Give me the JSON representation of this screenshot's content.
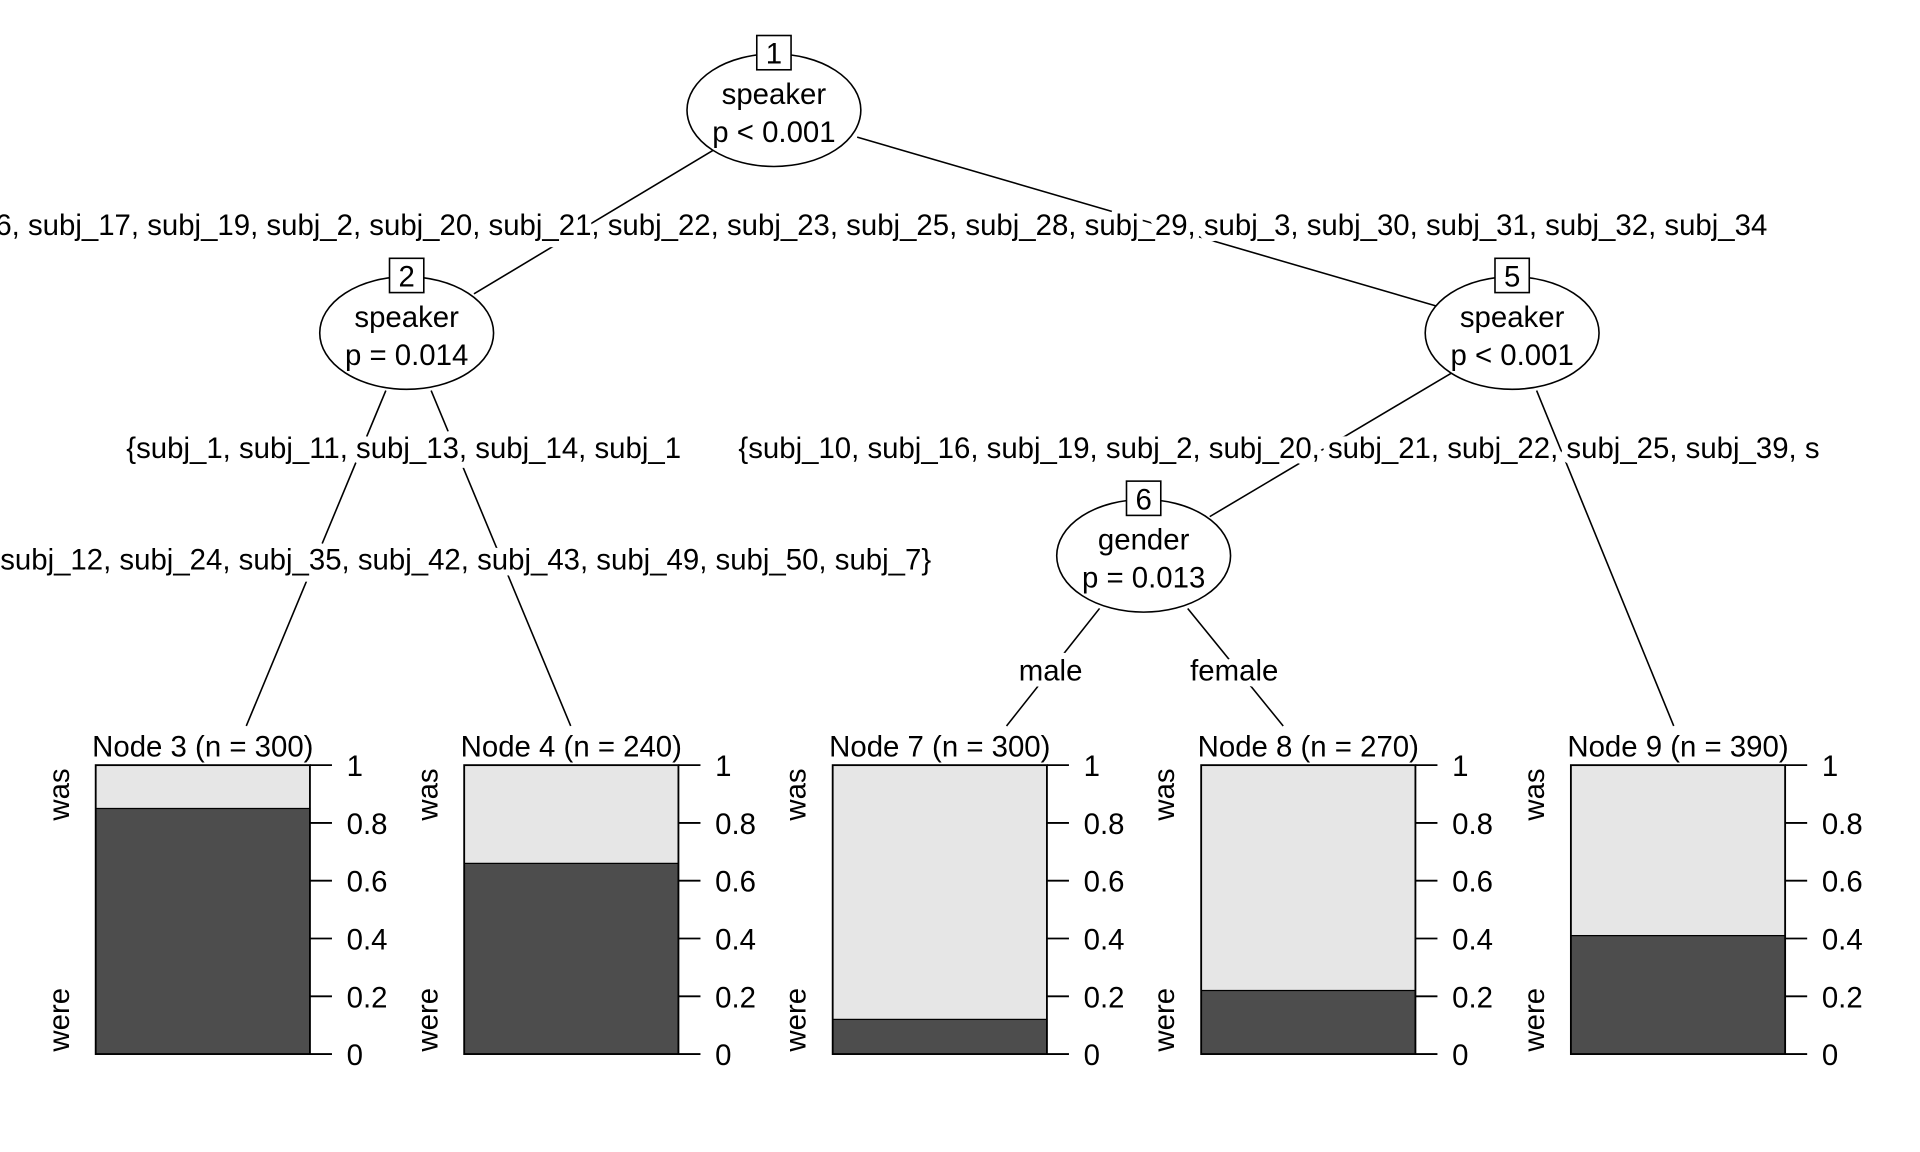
{
  "colors": {
    "were": "#4d4d4d",
    "was": "#e6e6e6",
    "line": "#000000"
  },
  "inner_nodes": [
    {
      "id": "1",
      "variable": "speaker",
      "pvalue": "p < 0.001"
    },
    {
      "id": "2",
      "variable": "speaker",
      "pvalue": "p = 0.014"
    },
    {
      "id": "5",
      "variable": "speaker",
      "pvalue": "p < 0.001"
    },
    {
      "id": "6",
      "variable": "gender",
      "pvalue": "p = 0.013"
    }
  ],
  "edge_labels": {
    "node1_split": "6, subj_17, subj_19, subj_2, subj_20, subj_21, subj_22, subj_23, subj_25, subj_28, subj_29, subj_3, subj_30, subj_31, subj_32, subj_34",
    "node2_left": "{subj_1, subj_11, subj_13, subj_14, subj_1",
    "node5_left": "{subj_10, subj_16, subj_19, subj_2, subj_20, subj_21, subj_22, subj_25, subj_39, s",
    "node2_right": "subj_12, subj_24, subj_35, subj_42, subj_43, subj_49, subj_50, subj_7}",
    "node6_left": "male",
    "node6_right": "female"
  },
  "chart_data": {
    "type": "bar",
    "title": "",
    "categories": [
      "was",
      "were"
    ],
    "ylim": [
      0,
      1
    ],
    "yticks": [
      "0",
      "0.2",
      "0.4",
      "0.6",
      "0.8",
      "1"
    ],
    "leaves": [
      {
        "title": "Node 3 (n = 300)",
        "were": 0.85,
        "was": 0.15
      },
      {
        "title": "Node 4 (n = 240)",
        "were": 0.66,
        "was": 0.34
      },
      {
        "title": "Node 7 (n = 300)",
        "were": 0.12,
        "was": 0.88
      },
      {
        "title": "Node 8 (n = 270)",
        "were": 0.22,
        "was": 0.78
      },
      {
        "title": "Node 9 (n = 390)",
        "were": 0.41,
        "was": 0.59
      }
    ]
  }
}
